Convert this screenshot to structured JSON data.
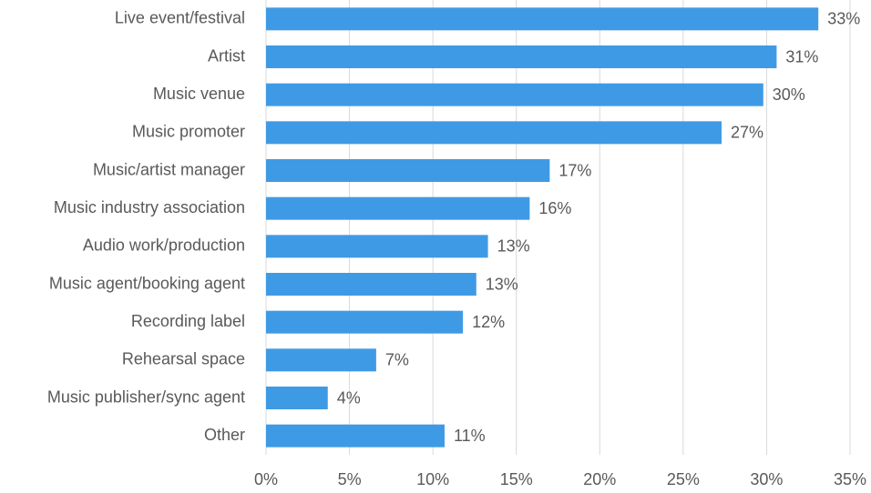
{
  "chart_data": {
    "type": "hbar",
    "categories": [
      "Live event/festival",
      "Artist",
      "Music venue",
      "Music promoter",
      "Music/artist manager",
      "Music industry association",
      "Audio work/production",
      "Music agent/booking agent",
      "Recording label",
      "Rehearsal space",
      "Music publisher/sync agent",
      "Other"
    ],
    "values": [
      33.1,
      30.6,
      29.8,
      27.3,
      17.0,
      15.8,
      13.3,
      12.6,
      11.8,
      6.6,
      3.7,
      10.7
    ],
    "value_labels": [
      "33%",
      "31%",
      "30%",
      "27%",
      "17%",
      "16%",
      "13%",
      "13%",
      "12%",
      "7%",
      "4%",
      "11%"
    ],
    "color": "#3f9ae5",
    "xlim": [
      0,
      35
    ],
    "xticks": [
      {
        "value": 0,
        "label": "0%"
      },
      {
        "value": 5,
        "label": "5%"
      },
      {
        "value": 10,
        "label": "10%"
      },
      {
        "value": 15,
        "label": "15%"
      },
      {
        "value": 20,
        "label": "20%"
      },
      {
        "value": 25,
        "label": "25%"
      },
      {
        "value": 30,
        "label": "30%"
      },
      {
        "value": 35,
        "label": "35%"
      }
    ],
    "grid": true
  }
}
